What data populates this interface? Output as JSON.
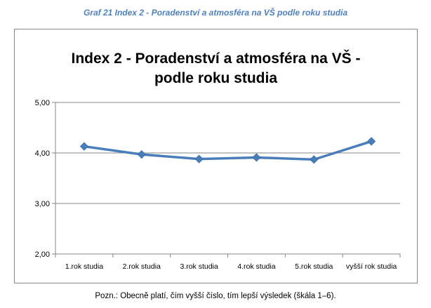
{
  "caption": "Graf 21 Index 2 - Poradenství a atmosféra na VŠ podle roku studia",
  "note": "Pozn.: Obecně platí, čím vyšší číslo, tím lepší výsledek (škála 1–6).",
  "chart_data": {
    "type": "line",
    "title_line1": "Index  2 - Poradenství a atmosféra na VŠ -",
    "title_line2": "podle roku studia",
    "categories": [
      "1.rok studia",
      "2.rok studia",
      "3.rok studia",
      "4.rok studia",
      "5.rok studia",
      "vyšší rok studia"
    ],
    "series": [
      {
        "values": [
          4.13,
          3.97,
          3.88,
          3.91,
          3.87,
          4.23
        ],
        "color": "#4a7ebb"
      }
    ],
    "ylim": [
      2,
      5
    ],
    "yticks": [
      2,
      3,
      4,
      5
    ],
    "ytick_labels": [
      "2,00",
      "3,00",
      "4,00",
      "5,00"
    ],
    "grid": true,
    "legend": "none"
  }
}
